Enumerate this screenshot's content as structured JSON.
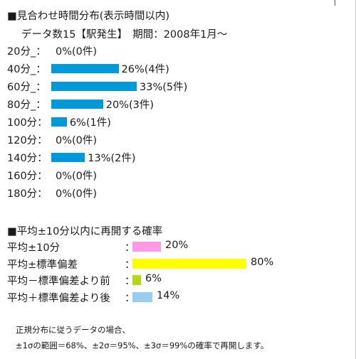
{
  "dist": {
    "heading": "■見合わせ時間分布(表示時間以内)",
    "subheading": "データ数15【駅発生】　期間：2008年1月～"
  },
  "prob": {
    "heading": "■平均±10分以内に再開する確率"
  },
  "note": {
    "line1": "正規分布に従うデータの場合、",
    "line2": "±1σの範囲＝68%、±2σ＝95%、±3σ＝99%の確率で再開します。"
  },
  "chart_data": [
    {
      "type": "bar",
      "orientation": "horizontal",
      "title": "■見合わせ時間分布(表示時間以内)",
      "subtitle": "データ数15【駅発生】　期間：2008年1月～",
      "categories": [
        "20分_：",
        "40分_：",
        "60分_：",
        "80分_：",
        "100分：",
        "120分：",
        "140分：",
        "160分：",
        "180分："
      ],
      "values": [
        0,
        26,
        33,
        20,
        6,
        0,
        13,
        0,
        0
      ],
      "counts": [
        0,
        4,
        5,
        3,
        1,
        0,
        2,
        0,
        0
      ],
      "value_labels": [
        "0%(0件)",
        "26%(4件)",
        "33%(5件)",
        "20%(3件)",
        "6%(1件)",
        "0%(0件)",
        "13%(2件)",
        "0%(0件)",
        "0%(0件)"
      ],
      "unit": "%",
      "bar_color": "#0099d9"
    },
    {
      "type": "bar",
      "orientation": "horizontal",
      "title": "■平均±10分以内に再開する確率",
      "categories": [
        "平均±10分",
        "平均±標準偏差",
        "平均－標準偏差より前",
        "平均＋標準偏差より後"
      ],
      "separators": [
        "：",
        "：",
        "：",
        "："
      ],
      "values": [
        20,
        80,
        6,
        14
      ],
      "value_labels": [
        "20%",
        "80%",
        "6%",
        "14%"
      ],
      "unit": "%",
      "colors": [
        "#ff99e6",
        "#ffff00",
        "#b3d916",
        "#99ccf2"
      ]
    }
  ]
}
